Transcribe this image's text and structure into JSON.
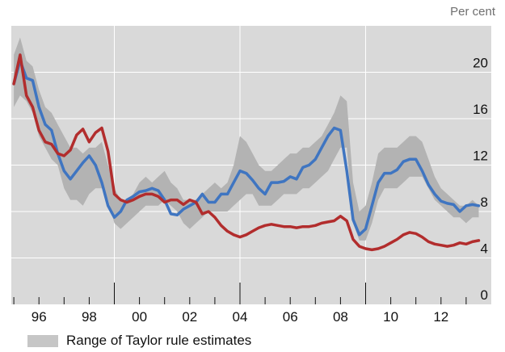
{
  "unit_label": "Per cent",
  "legend": {
    "label": "Range of Taylor rule estimates",
    "color": "#c6c6c6"
  },
  "colors": {
    "panel": "#d9d9d9",
    "band": "#b3b3b3",
    "blue": "#3f75c1",
    "red": "#b22d2d",
    "grid": "#ffffff"
  },
  "chart_data": {
    "type": "line",
    "title": "",
    "xlabel": "",
    "ylabel": "Per cent",
    "xlim": [
      1994.9,
      2014.0
    ],
    "ylim": [
      0,
      24
    ],
    "y_ticks": [
      0,
      4,
      8,
      12,
      16,
      20
    ],
    "x_ticks": [
      {
        "label": "96",
        "value": 1996.0
      },
      {
        "label": "98",
        "value": 1998.0
      },
      {
        "label": "00",
        "value": 2000.0
      },
      {
        "label": "02",
        "value": 2002.0
      },
      {
        "label": "04",
        "value": 2004.0
      },
      {
        "label": "06",
        "value": 2006.0
      },
      {
        "label": "08",
        "value": 2008.0
      },
      {
        "label": "10",
        "value": 2010.0
      },
      {
        "label": "12",
        "value": 2012.0
      }
    ],
    "vertical_gridlines": [
      1999.0,
      2004.0,
      2009.0
    ],
    "grid": true,
    "legend_position": "bottom-left",
    "range_band": {
      "name": "Range of Taylor rule estimates",
      "x": [
        1995.0,
        1995.25,
        1995.5,
        1995.75,
        1996.0,
        1996.25,
        1996.5,
        1996.75,
        1997.0,
        1997.25,
        1997.5,
        1997.75,
        1998.0,
        1998.25,
        1998.5,
        1998.75,
        1999.0,
        1999.25,
        1999.5,
        1999.75,
        2000.0,
        2000.25,
        2000.5,
        2000.75,
        2001.0,
        2001.25,
        2001.5,
        2001.75,
        2002.0,
        2002.25,
        2002.5,
        2002.75,
        2003.0,
        2003.25,
        2003.5,
        2003.75,
        2004.0,
        2004.25,
        2004.5,
        2004.75,
        2005.0,
        2005.25,
        2005.5,
        2005.75,
        2006.0,
        2006.25,
        2006.5,
        2006.75,
        2007.0,
        2007.25,
        2007.5,
        2007.75,
        2008.0,
        2008.25,
        2008.5,
        2008.75,
        2009.0,
        2009.25,
        2009.5,
        2009.75,
        2010.0,
        2010.25,
        2010.5,
        2010.75,
        2011.0,
        2011.25,
        2011.5,
        2011.75,
        2012.0,
        2012.25,
        2012.5,
        2012.75,
        2013.0,
        2013.25,
        2013.5
      ],
      "upper": [
        21.5,
        23.0,
        21.0,
        20.5,
        18.5,
        17.0,
        16.5,
        15.5,
        14.5,
        13.5,
        13.5,
        13.0,
        13.5,
        13.5,
        14.0,
        12.0,
        10.0,
        9.0,
        9.0,
        9.5,
        10.5,
        11.0,
        10.5,
        11.0,
        11.5,
        10.5,
        10.0,
        9.0,
        9.0,
        9.0,
        9.5,
        10.0,
        10.5,
        10.0,
        10.5,
        12.0,
        14.5,
        14.0,
        13.0,
        12.0,
        11.5,
        11.5,
        12.0,
        12.5,
        13.0,
        13.0,
        13.5,
        13.5,
        14.0,
        14.5,
        15.5,
        16.5,
        18.0,
        17.5,
        10.5,
        8.0,
        8.5,
        10.5,
        13.0,
        13.5,
        13.5,
        13.5,
        14.0,
        14.5,
        14.5,
        14.0,
        12.5,
        11.0,
        10.0,
        9.5,
        9.0,
        8.5,
        8.5,
        9.0,
        8.5
      ],
      "lower": [
        17.0,
        18.0,
        17.5,
        16.5,
        14.5,
        13.5,
        12.5,
        12.0,
        10.0,
        9.0,
        9.0,
        8.5,
        9.5,
        10.0,
        10.0,
        9.0,
        7.0,
        6.5,
        7.0,
        7.5,
        8.0,
        8.5,
        8.5,
        8.5,
        9.0,
        8.5,
        8.0,
        7.0,
        6.5,
        7.0,
        7.5,
        8.0,
        8.0,
        8.0,
        8.0,
        8.5,
        9.0,
        9.5,
        9.5,
        8.5,
        8.5,
        8.5,
        9.0,
        9.5,
        9.5,
        9.5,
        10.0,
        10.0,
        10.5,
        11.0,
        11.5,
        12.5,
        13.5,
        13.5,
        7.0,
        5.5,
        5.5,
        7.0,
        9.0,
        10.0,
        10.0,
        10.0,
        10.5,
        11.0,
        11.0,
        11.0,
        10.0,
        9.0,
        8.5,
        8.0,
        7.5,
        7.5,
        7.0,
        7.5,
        7.5
      ]
    },
    "series": [
      {
        "color": "#3f75c1",
        "x": [
          1995.0,
          1995.25,
          1995.5,
          1995.75,
          1996.0,
          1996.25,
          1996.5,
          1996.75,
          1997.0,
          1997.25,
          1997.5,
          1997.75,
          1998.0,
          1998.25,
          1998.5,
          1998.75,
          1999.0,
          1999.25,
          1999.5,
          1999.75,
          2000.0,
          2000.25,
          2000.5,
          2000.75,
          2001.0,
          2001.25,
          2001.5,
          2001.75,
          2002.0,
          2002.25,
          2002.5,
          2002.75,
          2003.0,
          2003.25,
          2003.5,
          2003.75,
          2004.0,
          2004.25,
          2004.5,
          2004.75,
          2005.0,
          2005.25,
          2005.5,
          2005.75,
          2006.0,
          2006.25,
          2006.5,
          2006.75,
          2007.0,
          2007.25,
          2007.5,
          2007.75,
          2008.0,
          2008.25,
          2008.5,
          2008.75,
          2009.0,
          2009.25,
          2009.5,
          2009.75,
          2010.0,
          2010.25,
          2010.5,
          2010.75,
          2011.0,
          2011.25,
          2011.5,
          2011.75,
          2012.0,
          2012.25,
          2012.5,
          2012.75,
          2013.0,
          2013.25,
          2013.5
        ],
        "values": [
          19.0,
          21.0,
          19.5,
          19.3,
          17.0,
          15.5,
          15.0,
          13.0,
          11.5,
          10.8,
          11.5,
          12.2,
          12.8,
          12.0,
          10.5,
          8.5,
          7.5,
          8.0,
          9.0,
          9.3,
          9.7,
          9.8,
          10.0,
          9.8,
          9.0,
          7.8,
          7.7,
          8.2,
          8.5,
          8.8,
          9.5,
          8.8,
          8.8,
          9.5,
          9.5,
          10.5,
          11.5,
          11.3,
          10.7,
          10.0,
          9.5,
          10.5,
          10.5,
          10.6,
          11.0,
          10.8,
          11.8,
          12.0,
          12.5,
          13.5,
          14.5,
          15.2,
          15.0,
          11.5,
          7.3,
          6.0,
          6.5,
          8.5,
          10.5,
          11.3,
          11.3,
          11.6,
          12.3,
          12.5,
          12.5,
          11.5,
          10.3,
          9.5,
          8.9,
          8.7,
          8.6,
          8.0,
          8.5,
          8.6,
          8.5
        ]
      },
      {
        "color": "#b22d2d",
        "x": [
          1995.0,
          1995.25,
          1995.5,
          1995.75,
          1996.0,
          1996.25,
          1996.5,
          1996.75,
          1997.0,
          1997.25,
          1997.5,
          1997.75,
          1998.0,
          1998.25,
          1998.5,
          1998.75,
          1999.0,
          1999.25,
          1999.5,
          1999.75,
          2000.0,
          2000.25,
          2000.5,
          2000.75,
          2001.0,
          2001.25,
          2001.5,
          2001.75,
          2002.0,
          2002.25,
          2002.5,
          2002.75,
          2003.0,
          2003.25,
          2003.5,
          2003.75,
          2004.0,
          2004.25,
          2004.5,
          2004.75,
          2005.0,
          2005.25,
          2005.5,
          2005.75,
          2006.0,
          2006.25,
          2006.5,
          2006.75,
          2007.0,
          2007.25,
          2007.5,
          2007.75,
          2008.0,
          2008.25,
          2008.5,
          2008.75,
          2009.0,
          2009.25,
          2009.5,
          2009.75,
          2010.0,
          2010.25,
          2010.5,
          2010.75,
          2011.0,
          2011.25,
          2011.5,
          2011.75,
          2012.0,
          2012.25,
          2012.5,
          2012.75,
          2013.0,
          2013.25,
          2013.5
        ],
        "values": [
          19.0,
          21.5,
          18.0,
          17.0,
          15.0,
          14.0,
          13.8,
          13.0,
          12.8,
          13.3,
          14.6,
          15.1,
          14.0,
          14.8,
          15.2,
          13.2,
          9.5,
          9.0,
          8.8,
          9.0,
          9.3,
          9.5,
          9.5,
          9.3,
          8.8,
          9.0,
          9.0,
          8.6,
          9.0,
          8.8,
          7.8,
          8.0,
          7.5,
          6.8,
          6.3,
          6.0,
          5.8,
          6.0,
          6.3,
          6.6,
          6.8,
          6.9,
          6.8,
          6.7,
          6.7,
          6.6,
          6.7,
          6.7,
          6.8,
          7.0,
          7.1,
          7.2,
          7.6,
          7.2,
          5.6,
          5.0,
          4.8,
          4.7,
          4.8,
          5.0,
          5.3,
          5.6,
          6.0,
          6.2,
          6.1,
          5.8,
          5.4,
          5.2,
          5.1,
          5.0,
          5.1,
          5.3,
          5.2,
          5.4,
          5.5
        ]
      }
    ]
  }
}
